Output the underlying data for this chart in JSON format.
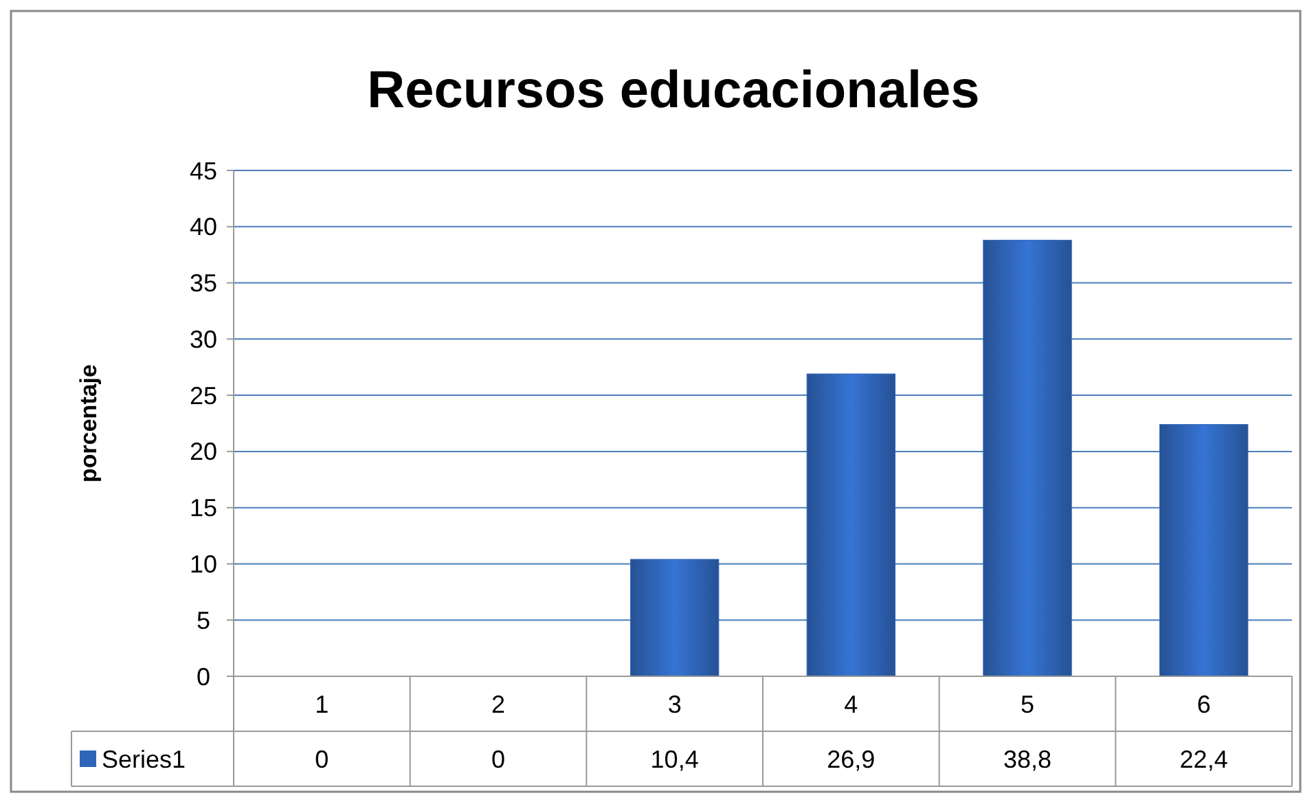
{
  "chart_data": {
    "type": "bar",
    "title": "Recursos educacionales",
    "ylabel": "porcentaje",
    "categories": [
      "1",
      "2",
      "3",
      "4",
      "5",
      "6"
    ],
    "series": [
      {
        "name": "Series1",
        "color": "#2f65b8",
        "values": [
          0,
          0,
          10.4,
          26.9,
          38.8,
          22.4
        ],
        "value_labels": [
          "0",
          "0",
          "10,4",
          "26,9",
          "38,8",
          "22,4"
        ]
      }
    ],
    "ylim": [
      0,
      45
    ],
    "yticks": [
      0,
      5,
      10,
      15,
      20,
      25,
      30,
      35,
      40,
      45
    ],
    "grid": "y",
    "legend": "bottom"
  }
}
